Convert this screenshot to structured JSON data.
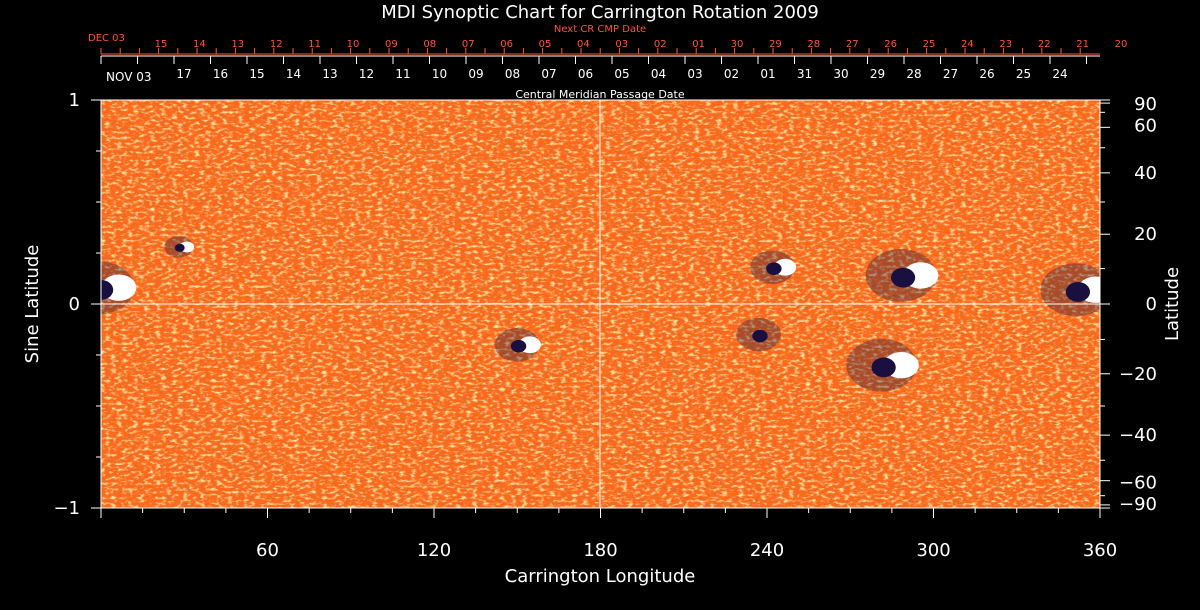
{
  "chart_data": {
    "type": "heatmap",
    "title": "MDI Synoptic Chart for Carrington Rotation 2009",
    "xlabel": "Carrington Longitude",
    "ylabel_left": "Sine Latitude",
    "ylabel_right": "Latitude",
    "xlim": [
      0,
      360
    ],
    "ylim": [
      -1,
      1
    ],
    "x_ticks": [
      60,
      120,
      180,
      240,
      300,
      360
    ],
    "y_ticks_left": [
      {
        "value": 1,
        "label": "1"
      },
      {
        "value": 0,
        "label": "0"
      },
      {
        "value": -1,
        "label": "−1"
      }
    ],
    "lat_ticks_right": [
      {
        "deg": 90,
        "label": "90"
      },
      {
        "deg": 60,
        "label": "60"
      },
      {
        "deg": 40,
        "label": "40"
      },
      {
        "deg": 20,
        "label": "20"
      },
      {
        "deg": 0,
        "label": "0"
      },
      {
        "deg": -20,
        "label": "−20"
      },
      {
        "deg": -40,
        "label": "−40"
      },
      {
        "deg": -60,
        "label": "−60"
      },
      {
        "deg": -90,
        "label": "−90"
      }
    ],
    "next_cr_axis": {
      "label": "Next CR CMP Date",
      "start_label": "DEC 03",
      "dates": [
        "15",
        "14",
        "13",
        "12",
        "11",
        "10",
        "09",
        "08",
        "07",
        "06",
        "05",
        "04",
        "03",
        "02",
        "01",
        "30",
        "29",
        "28",
        "27",
        "26",
        "25",
        "24",
        "23",
        "22",
        "21",
        "20"
      ]
    },
    "cmp_axis": {
      "label": "Central Meridian Passage Date",
      "start_label": "NOV 03",
      "dates": [
        "17",
        "16",
        "15",
        "14",
        "13",
        "12",
        "11",
        "10",
        "09",
        "08",
        "07",
        "06",
        "05",
        "04",
        "03",
        "02",
        "01",
        "31",
        "30",
        "29",
        "28",
        "27",
        "26",
        "25",
        "24"
      ]
    },
    "regions": [
      {
        "lon": 4,
        "sinlat": 0.08,
        "polarity": "mixed",
        "strength": "strong"
      },
      {
        "lon": 30,
        "sinlat": 0.28,
        "polarity": "mixed",
        "strength": "weak"
      },
      {
        "lon": 153,
        "sinlat": -0.2,
        "polarity": "mixed",
        "strength": "moderate"
      },
      {
        "lon": 245,
        "sinlat": 0.18,
        "polarity": "mixed",
        "strength": "moderate"
      },
      {
        "lon": 240,
        "sinlat": -0.15,
        "polarity": "negative",
        "strength": "moderate"
      },
      {
        "lon": 293,
        "sinlat": 0.14,
        "polarity": "mixed",
        "strength": "strong"
      },
      {
        "lon": 286,
        "sinlat": -0.3,
        "polarity": "mixed",
        "strength": "strong"
      },
      {
        "lon": 356,
        "sinlat": 0.07,
        "polarity": "mixed",
        "strength": "strong"
      }
    ],
    "background_color": "#ff6a1a",
    "positive_color": "#ffffff",
    "negative_color": "#1a1040"
  }
}
